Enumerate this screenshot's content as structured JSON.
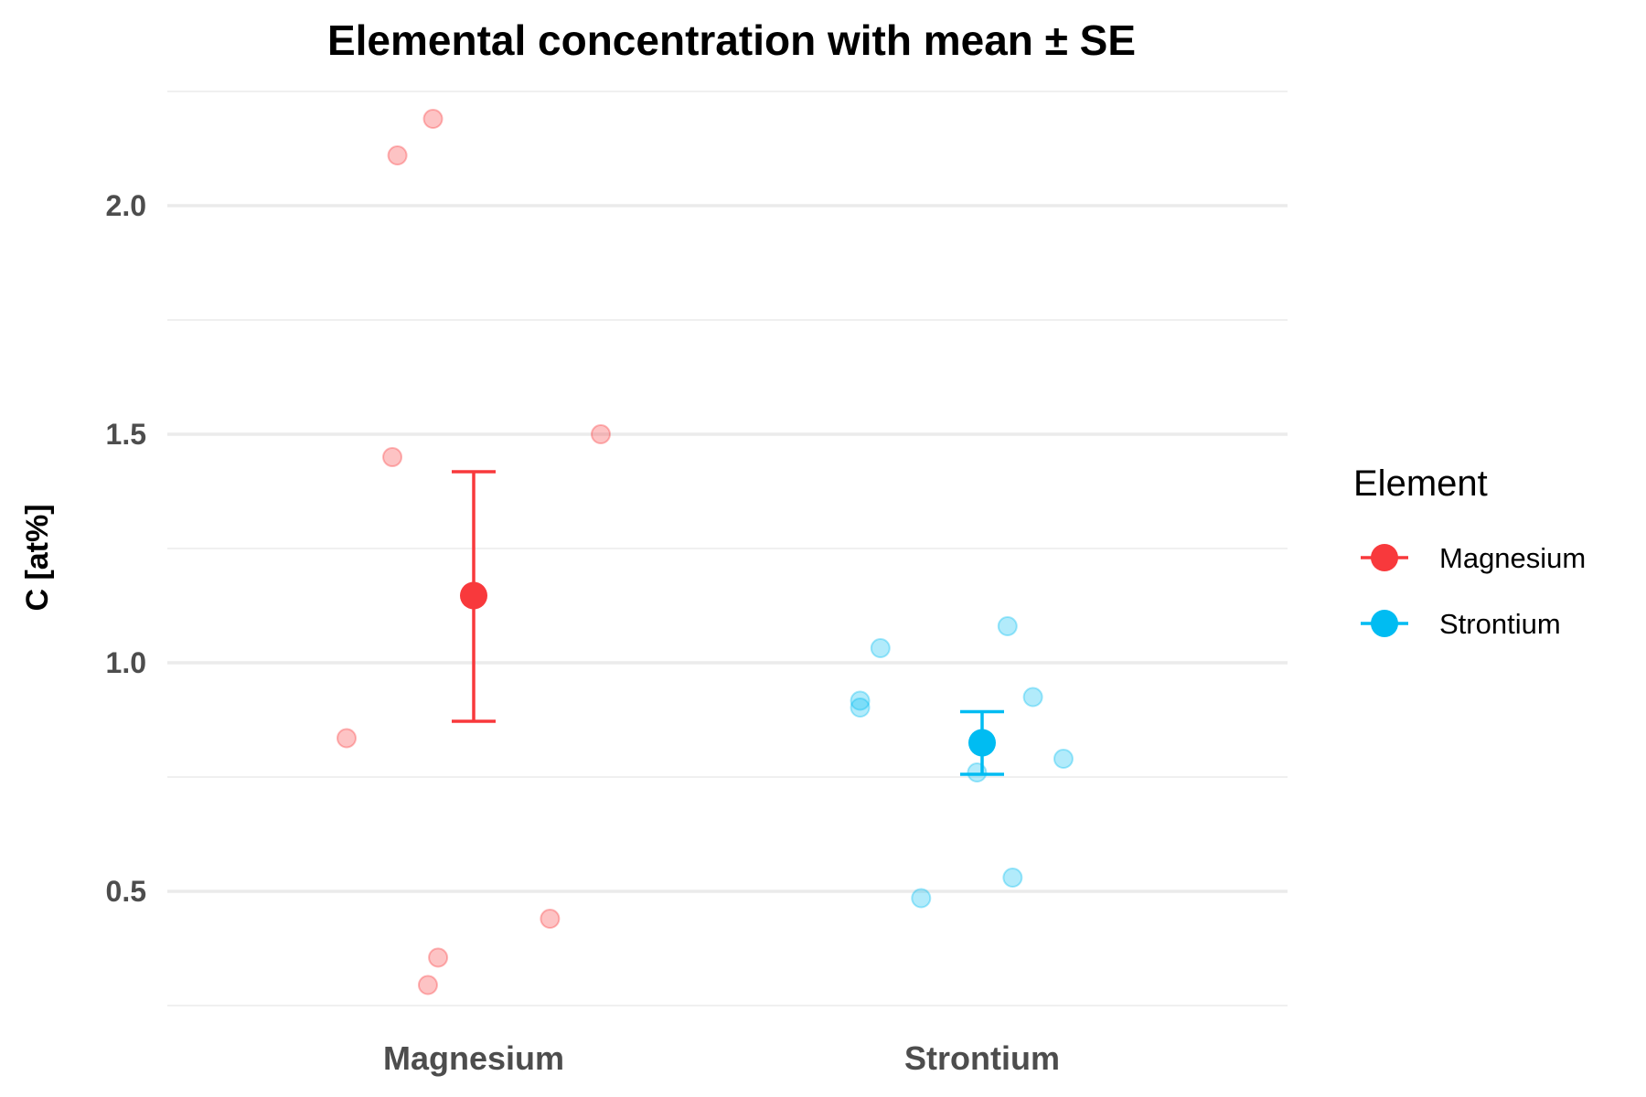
{
  "chart_data": {
    "type": "scatter",
    "title": "Elemental concentration with mean ± SE",
    "xlabel": "",
    "ylabel": "C [at%]",
    "categories": [
      "Magnesium",
      "Strontium"
    ],
    "ylim": [
      0.25,
      2.25
    ],
    "yticks": [
      0.5,
      1.0,
      1.5,
      2.0
    ],
    "ytick_labels": [
      "0.5",
      "1.0",
      "1.5",
      "2.0"
    ],
    "grid": true,
    "legend": {
      "title": "Element",
      "position": "right"
    },
    "colors": {
      "Magnesium": "#f8393c",
      "Strontium": "#00bcf2"
    },
    "series": [
      {
        "name": "Magnesium",
        "points": [
          {
            "offset": -0.08,
            "y": 2.19
          },
          {
            "offset": -0.15,
            "y": 2.11
          },
          {
            "offset": -0.16,
            "y": 1.45
          },
          {
            "offset": 0.25,
            "y": 1.5
          },
          {
            "offset": -0.25,
            "y": 0.835
          },
          {
            "offset": 0.15,
            "y": 0.44
          },
          {
            "offset": -0.07,
            "y": 0.355
          },
          {
            "offset": -0.09,
            "y": 0.295
          }
        ],
        "mean": 1.147,
        "se_low": 0.872,
        "se_high": 1.418
      },
      {
        "name": "Strontium",
        "points": [
          {
            "offset": 0.05,
            "y": 1.08
          },
          {
            "offset": -0.2,
            "y": 1.032
          },
          {
            "offset": -0.24,
            "y": 0.917
          },
          {
            "offset": -0.24,
            "y": 0.902
          },
          {
            "offset": 0.1,
            "y": 0.925
          },
          {
            "offset": 0.16,
            "y": 0.79
          },
          {
            "offset": -0.01,
            "y": 0.76
          },
          {
            "offset": 0.06,
            "y": 0.53
          },
          {
            "offset": -0.12,
            "y": 0.485
          }
        ],
        "mean": 0.825,
        "se_low": 0.756,
        "se_high": 0.893
      }
    ]
  }
}
